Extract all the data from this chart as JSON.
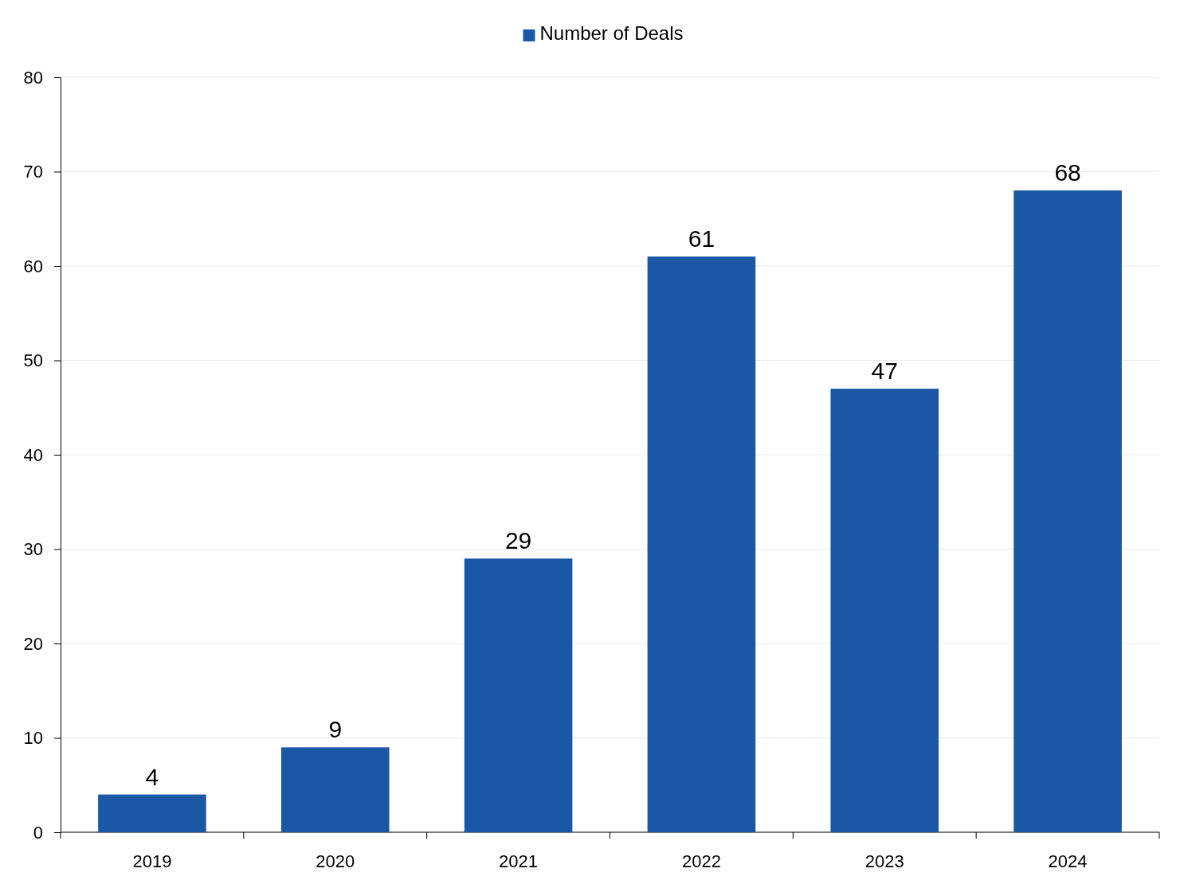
{
  "chart_data": {
    "type": "bar",
    "categories": [
      "2019",
      "2020",
      "2021",
      "2022",
      "2023",
      "2024"
    ],
    "series": [
      {
        "name": "Number of Deals",
        "color": "#1a58a6",
        "values": [
          4,
          9,
          29,
          61,
          47,
          68
        ]
      }
    ],
    "ylim": [
      0,
      80
    ],
    "yticks": [
      0,
      10,
      20,
      30,
      40,
      50,
      60,
      70,
      80
    ],
    "grid": "y",
    "legend": "top",
    "data_labels": true
  }
}
